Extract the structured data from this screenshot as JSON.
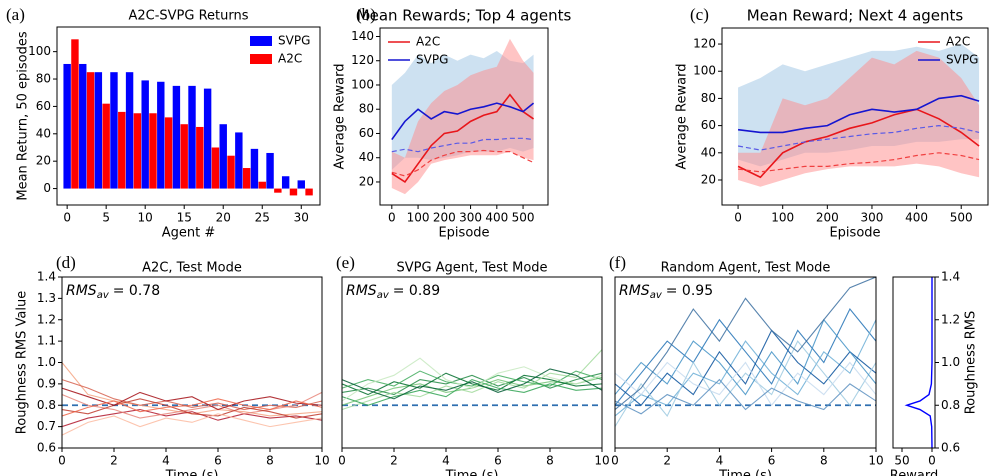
{
  "chart_data": [
    {
      "type": "bar",
      "panel_label": "(a)",
      "title": "A2C-SVPG Returns",
      "x_label": "Agent #",
      "y_label": "Mean Return, 50 episodes",
      "xlim": [
        -1.3,
        32.4
      ],
      "xticks": [
        0,
        5,
        10,
        15,
        20,
        25,
        30
      ],
      "ylim": [
        -12,
        118
      ],
      "yticks": [
        0,
        20,
        40,
        60,
        80,
        100
      ],
      "legend": "upper right",
      "series": [
        {
          "name": "SVPG",
          "color": "#0000ff",
          "x": [
            0,
            2,
            4,
            6,
            8,
            10,
            12,
            14,
            16,
            18,
            20,
            22,
            24,
            26,
            28,
            30
          ],
          "values": [
            91,
            91,
            85,
            85,
            85,
            79,
            78,
            75,
            75,
            73,
            47,
            41,
            29,
            26,
            9,
            6
          ]
        },
        {
          "name": "A2C",
          "color": "#ff0000",
          "x": [
            1,
            3,
            5,
            7,
            9,
            11,
            13,
            15,
            17,
            19,
            21,
            23,
            25,
            27,
            29,
            31
          ],
          "values": [
            109,
            85,
            62,
            56,
            55,
            55,
            52,
            47,
            45,
            30,
            24,
            15,
            5,
            -3,
            -5,
            -5
          ]
        }
      ]
    },
    {
      "type": "line",
      "panel_label": "(b)",
      "title": "Mean Rewards; Top 4 agents",
      "x_label": "Episode",
      "y_label": "Average Reward",
      "xlim": [
        -45,
        595
      ],
      "xticks": [
        0,
        100,
        200,
        300,
        400,
        500
      ],
      "ylim": [
        1,
        147
      ],
      "yticks": [
        20,
        40,
        60,
        80,
        100,
        120,
        140
      ],
      "legend": "upper left",
      "x": [
        0,
        50,
        100,
        150,
        200,
        250,
        300,
        350,
        400,
        450,
        500,
        540
      ],
      "series": [
        {
          "name": "A2C",
          "color": "#e8161b",
          "band_color": "#ff8a8a",
          "values": [
            27,
            20,
            35,
            50,
            60,
            62,
            70,
            75,
            78,
            92,
            78,
            72
          ],
          "lower": [
            15,
            10,
            20,
            35,
            38,
            40,
            42,
            42,
            42,
            45,
            40,
            38
          ],
          "upper": [
            45,
            40,
            70,
            85,
            95,
            100,
            108,
            112,
            115,
            138,
            120,
            110
          ]
        },
        {
          "name": "SVPG",
          "color": "#1515d0",
          "band_color": "#9cc3e4",
          "values": [
            55,
            70,
            80,
            72,
            78,
            76,
            80,
            82,
            85,
            82,
            78,
            85
          ],
          "lower": [
            30,
            40,
            40,
            38,
            40,
            42,
            45,
            45,
            45,
            48,
            45,
            48
          ],
          "upper": [
            100,
            110,
            125,
            118,
            125,
            120,
            125,
            122,
            128,
            120,
            118,
            125
          ]
        },
        {
          "color": "#f04040",
          "dashed": true,
          "values": [
            28,
            25,
            30,
            38,
            42,
            45,
            45,
            46,
            45,
            45,
            40,
            36
          ]
        },
        {
          "color": "#5a5ae6",
          "dashed": true,
          "values": [
            45,
            47,
            45,
            48,
            50,
            52,
            52,
            55,
            55,
            56,
            56,
            55
          ]
        }
      ]
    },
    {
      "type": "line",
      "panel_label": "(c)",
      "title": "Mean Reward; Next 4 agents",
      "x_label": "Episode",
      "y_label": "Average Reward",
      "xlim": [
        -36,
        560
      ],
      "xticks": [
        0,
        100,
        200,
        300,
        400,
        500
      ],
      "ylim": [
        1.6,
        131.8
      ],
      "yticks": [
        20,
        40,
        60,
        80,
        100,
        120
      ],
      "legend": "upper right",
      "x": [
        0,
        50,
        100,
        150,
        200,
        250,
        300,
        350,
        400,
        450,
        500,
        540
      ],
      "series": [
        {
          "name": "A2C",
          "color": "#e8161b",
          "band_color": "#ff8a8a",
          "values": [
            30,
            22,
            40,
            48,
            52,
            58,
            62,
            68,
            72,
            65,
            55,
            45
          ],
          "lower": [
            20,
            15,
            20,
            25,
            28,
            30,
            30,
            30,
            32,
            30,
            25,
            22
          ],
          "upper": [
            40,
            40,
            80,
            75,
            80,
            95,
            110,
            105,
            115,
            110,
            95,
            75
          ]
        },
        {
          "name": "SVPG",
          "color": "#1515d0",
          "band_color": "#9cc3e4",
          "values": [
            57,
            55,
            55,
            58,
            60,
            68,
            72,
            70,
            72,
            80,
            82,
            78
          ],
          "lower": [
            35,
            30,
            35,
            40,
            40,
            42,
            45,
            45,
            48,
            48,
            50,
            50
          ],
          "upper": [
            88,
            95,
            105,
            100,
            105,
            110,
            115,
            115,
            118,
            115,
            120,
            110
          ]
        },
        {
          "color": "#f04040",
          "dashed": true,
          "values": [
            28,
            26,
            28,
            30,
            30,
            32,
            33,
            35,
            38,
            40,
            38,
            35
          ]
        },
        {
          "color": "#5a5ae6",
          "dashed": true,
          "values": [
            45,
            42,
            45,
            48,
            50,
            52,
            54,
            55,
            58,
            60,
            58,
            55
          ]
        }
      ]
    },
    {
      "type": "line",
      "panel_label": "(d)",
      "title": "A2C, Test Mode",
      "x_label": "Time (s)",
      "y_label": "Roughness RMS Value",
      "annotation": [
        "RMS",
        "av",
        "= 0.78"
      ],
      "reference": 0.8,
      "reference_color": "#2f6fb0",
      "xlim": [
        0,
        10
      ],
      "xticks": [
        0,
        2,
        4,
        6,
        8,
        10
      ],
      "ylim": [
        0.6,
        1.4
      ],
      "yticks": [
        0.6,
        0.7,
        0.8,
        0.9,
        {
          "value": 1,
          "label": "1.0"
        },
        1.1,
        1.2,
        1.3,
        1.4
      ],
      "x": [
        0,
        1,
        2,
        3,
        4,
        5,
        6,
        7,
        8,
        9,
        10
      ],
      "series": [
        {
          "color": "#f4a582",
          "values": [
            1.0,
            0.85,
            0.82,
            0.8,
            0.78,
            0.76,
            0.78,
            0.77,
            0.75,
            0.76,
            0.77
          ]
        },
        {
          "color": "#d6604d",
          "values": [
            0.92,
            0.88,
            0.83,
            0.8,
            0.82,
            0.79,
            0.81,
            0.78,
            0.8,
            0.79,
            0.82
          ]
        },
        {
          "color": "#b2182b",
          "values": [
            0.7,
            0.74,
            0.76,
            0.78,
            0.75,
            0.77,
            0.73,
            0.76,
            0.74,
            0.75,
            0.73
          ]
        },
        {
          "color": "#e7867a",
          "values": [
            0.85,
            0.8,
            0.78,
            0.74,
            0.76,
            0.78,
            0.8,
            0.76,
            0.78,
            0.8,
            0.86
          ]
        },
        {
          "color": "#c0392b",
          "values": [
            0.78,
            0.76,
            0.8,
            0.83,
            0.8,
            0.76,
            0.75,
            0.79,
            0.77,
            0.74,
            0.76
          ]
        },
        {
          "color": "#fcbba1",
          "values": [
            0.66,
            0.72,
            0.75,
            0.7,
            0.74,
            0.72,
            0.76,
            0.73,
            0.7,
            0.72,
            0.74
          ]
        },
        {
          "color": "#a50f15",
          "values": [
            0.88,
            0.84,
            0.8,
            0.86,
            0.82,
            0.84,
            0.78,
            0.82,
            0.84,
            0.81,
            0.8
          ]
        },
        {
          "color": "#ef6548",
          "values": [
            0.75,
            0.79,
            0.82,
            0.77,
            0.79,
            0.8,
            0.83,
            0.8,
            0.78,
            0.82,
            0.79
          ]
        }
      ]
    },
    {
      "type": "line",
      "panel_label": "(e)",
      "title": "SVPG Agent, Test Mode",
      "x_label": "Time (s)",
      "annotation": [
        "RMS",
        "av",
        "= 0.89"
      ],
      "reference": 0.8,
      "reference_color": "#2f6fb0",
      "xlim": [
        0,
        10
      ],
      "xticks": [
        0,
        2,
        4,
        6,
        8,
        10
      ],
      "ylim": [
        0.6,
        1.4
      ],
      "x": [
        0,
        1,
        2,
        3,
        4,
        5,
        6,
        7,
        8,
        9,
        10
      ],
      "series": [
        {
          "color": "#74c476",
          "values": [
            0.8,
            0.84,
            0.88,
            0.9,
            0.86,
            0.88,
            0.92,
            0.89,
            0.91,
            0.9,
            0.93
          ]
        },
        {
          "color": "#238b45",
          "values": [
            0.86,
            0.88,
            0.85,
            0.92,
            0.9,
            0.94,
            0.89,
            0.93,
            0.88,
            0.92,
            0.95
          ]
        },
        {
          "color": "#006d2c",
          "values": [
            0.9,
            0.85,
            0.91,
            0.88,
            0.95,
            0.9,
            0.87,
            0.94,
            0.92,
            0.89,
            0.9
          ]
        },
        {
          "color": "#a1d99b",
          "values": [
            0.78,
            0.82,
            0.86,
            0.84,
            0.89,
            0.86,
            0.91,
            0.88,
            0.95,
            0.93,
            1.06
          ]
        },
        {
          "color": "#41ab5d",
          "values": [
            0.88,
            0.92,
            0.89,
            0.96,
            0.91,
            0.89,
            0.94,
            0.91,
            0.89,
            0.96,
            0.92
          ]
        },
        {
          "color": "#31a354",
          "values": [
            0.84,
            0.8,
            0.84,
            0.87,
            0.84,
            0.92,
            0.88,
            0.86,
            0.9,
            0.87,
            0.88
          ]
        },
        {
          "color": "#c7e9c0",
          "values": [
            0.82,
            0.9,
            0.94,
            1.02,
            0.92,
            0.88,
            0.95,
            0.98,
            0.93,
            0.9,
            0.94
          ]
        },
        {
          "color": "#005a32",
          "values": [
            0.92,
            0.87,
            0.83,
            0.89,
            0.87,
            0.91,
            0.86,
            0.9,
            0.97,
            0.94,
            0.87
          ]
        }
      ]
    },
    {
      "type": "line",
      "panel_label": "(f)",
      "title": "Random Agent, Test Mode",
      "x_label": "Time (s)",
      "annotation": [
        "RMS",
        "av",
        "= 0.95"
      ],
      "reference": 0.8,
      "reference_color": "#2f6fb0",
      "xlim": [
        0,
        10
      ],
      "xticks": [
        0,
        2,
        4,
        6,
        8,
        10
      ],
      "ylim": [
        0.6,
        1.4
      ],
      "x": [
        0,
        1,
        2,
        3,
        4,
        5,
        6,
        7,
        8,
        9,
        10
      ],
      "series": [
        {
          "color": "#2171b5",
          "values": [
            0.8,
            0.95,
            1.1,
            1.0,
            1.2,
            1.05,
            0.9,
            1.15,
            1.0,
            1.25,
            1.1
          ]
        },
        {
          "color": "#6baed6",
          "values": [
            0.75,
            0.85,
            0.8,
            0.95,
            0.9,
            1.1,
            0.95,
            0.85,
            1.05,
            0.95,
            1.2
          ]
        },
        {
          "color": "#08519c",
          "values": [
            0.9,
            0.8,
            0.95,
            0.85,
            1.05,
            0.9,
            1.15,
            1.0,
            0.9,
            1.05,
            0.95
          ]
        },
        {
          "color": "#9ecae1",
          "values": [
            0.7,
            0.9,
            0.75,
            1.0,
            0.8,
            0.95,
            0.85,
            1.1,
            0.95,
            0.8,
            1.0
          ]
        },
        {
          "color": "#4292c6",
          "values": [
            0.85,
            1.0,
            0.9,
            1.1,
            1.0,
            0.85,
            1.05,
            0.9,
            1.2,
            1.05,
            0.9
          ]
        },
        {
          "color": "#c6dbef",
          "values": [
            0.95,
            0.85,
            1.0,
            0.9,
            0.85,
            1.0,
            0.8,
            0.95,
            0.85,
            1.0,
            0.85
          ]
        },
        {
          "color": "#3b6fa0",
          "values": [
            0.78,
            0.88,
            1.05,
            1.25,
            1.1,
            1.3,
            1.15,
            1.05,
            1.2,
            1.35,
            1.4
          ]
        },
        {
          "color": "#5a8fc0",
          "values": [
            0.82,
            0.76,
            0.85,
            0.8,
            0.92,
            0.78,
            0.88,
            0.82,
            0.78,
            0.9,
            0.82
          ]
        }
      ]
    },
    {
      "type": "density",
      "x_label": "Reward",
      "y_label": "Roughness RMS",
      "y_axis_side": "right",
      "xlim": [
        65,
        -5
      ],
      "xticks": [
        50,
        0
      ],
      "ylim": [
        0.6,
        1.4
      ],
      "yticks": [
        0.6,
        0.8,
        {
          "value": 1,
          "label": "1.0"
        },
        1.2,
        1.4
      ],
      "series": [
        {
          "color": "#0000ff",
          "y": [
            0.6,
            0.7,
            0.75,
            0.78,
            0.8,
            0.82,
            0.85,
            0.9,
            1.0,
            1.4
          ],
          "values": [
            0,
            0.5,
            3,
            20,
            42,
            20,
            5,
            1,
            0,
            0
          ]
        }
      ]
    }
  ]
}
